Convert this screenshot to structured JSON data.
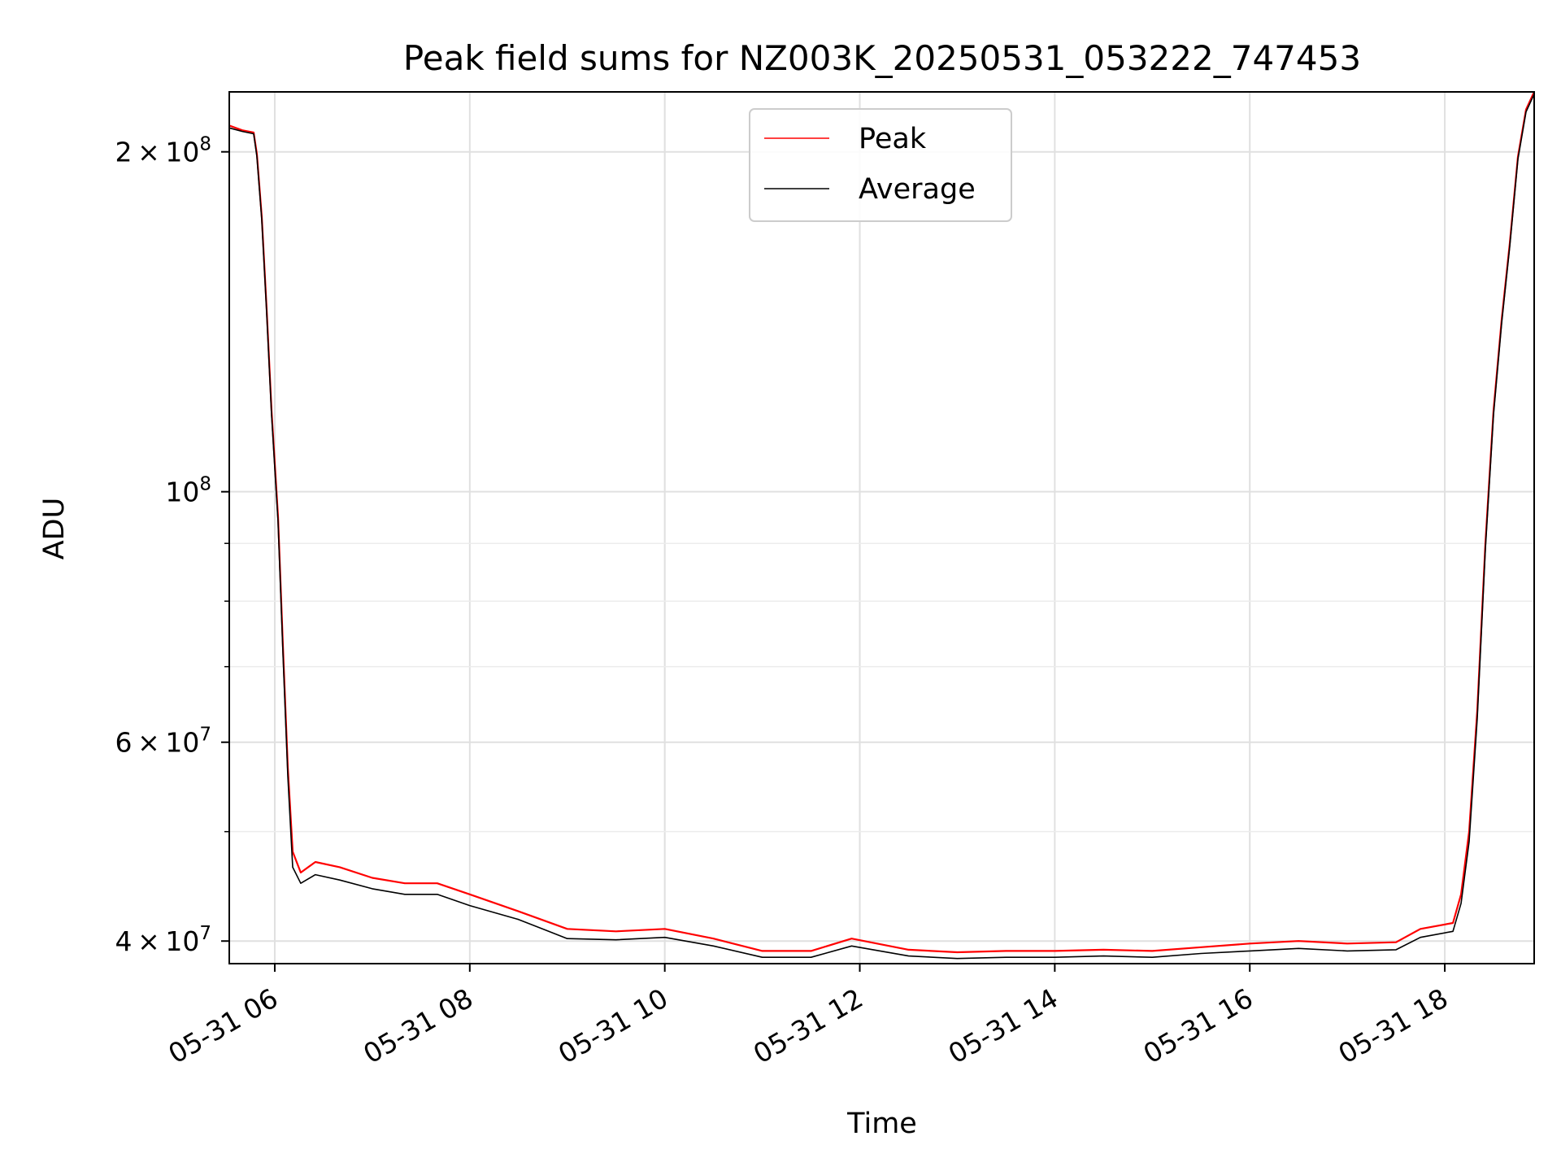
{
  "chart_data": {
    "type": "line",
    "title": "Peak field sums for NZ003K_20250531_053222_747453",
    "xlabel": "Time",
    "ylabel": "ADU",
    "yscale": "log",
    "grid": true,
    "legend_position": "top-center",
    "xlim": [
      "2025-05-31T05:32",
      "2025-05-31T18:55"
    ],
    "ylim": [
      38200000,
      226000000
    ],
    "x_ticks": [
      {
        "value": "2025-05-31T06:00",
        "label": "05-31 06"
      },
      {
        "value": "2025-05-31T08:00",
        "label": "05-31 08"
      },
      {
        "value": "2025-05-31T10:00",
        "label": "05-31 10"
      },
      {
        "value": "2025-05-31T12:00",
        "label": "05-31 12"
      },
      {
        "value": "2025-05-31T14:00",
        "label": "05-31 14"
      },
      {
        "value": "2025-05-31T16:00",
        "label": "05-31 16"
      },
      {
        "value": "2025-05-31T18:00",
        "label": "05-31 18"
      }
    ],
    "y_major_ticks": [
      {
        "value": 40000000,
        "base": "4 × 10",
        "exp": "7"
      },
      {
        "value": 60000000,
        "base": "6 × 10",
        "exp": "7"
      },
      {
        "value": 100000000,
        "base": "10",
        "exp": "8"
      },
      {
        "value": 200000000,
        "base": "2 × 10",
        "exp": "8"
      }
    ],
    "y_minor_ticks": [
      50000000,
      70000000,
      80000000,
      90000000
    ],
    "series": [
      {
        "name": "Peak",
        "color": "#ff0000",
        "x": [
          "2025-05-31T05:32",
          "2025-05-31T05:40",
          "2025-05-31T05:47",
          "2025-05-31T05:49",
          "2025-05-31T05:52",
          "2025-05-31T05:55",
          "2025-05-31T05:58",
          "2025-05-31T06:02",
          "2025-05-31T06:05",
          "2025-05-31T06:08",
          "2025-05-31T06:11",
          "2025-05-31T06:16",
          "2025-05-31T06:25",
          "2025-05-31T06:40",
          "2025-05-31T07:00",
          "2025-05-31T07:20",
          "2025-05-31T07:40",
          "2025-05-31T08:00",
          "2025-05-31T08:30",
          "2025-05-31T09:00",
          "2025-05-31T09:30",
          "2025-05-31T10:00",
          "2025-05-31T10:30",
          "2025-05-31T11:00",
          "2025-05-31T11:30",
          "2025-05-31T11:55",
          "2025-05-31T12:30",
          "2025-05-31T13:00",
          "2025-05-31T13:30",
          "2025-05-31T14:00",
          "2025-05-31T14:30",
          "2025-05-31T15:00",
          "2025-05-31T15:30",
          "2025-05-31T16:00",
          "2025-05-31T16:30",
          "2025-05-31T17:00",
          "2025-05-31T17:30",
          "2025-05-31T17:45",
          "2025-05-31T18:05",
          "2025-05-31T18:10",
          "2025-05-31T18:15",
          "2025-05-31T18:20",
          "2025-05-31T18:25",
          "2025-05-31T18:30",
          "2025-05-31T18:35",
          "2025-05-31T18:40",
          "2025-05-31T18:45",
          "2025-05-31T18:50",
          "2025-05-31T18:55"
        ],
        "y": [
          211000000,
          209000000,
          208000000,
          199000000,
          175000000,
          145000000,
          118000000,
          95000000,
          73000000,
          57000000,
          48000000,
          46000000,
          47000000,
          46500000,
          45500000,
          45000000,
          45000000,
          44000000,
          42500000,
          41000000,
          40800000,
          41000000,
          40200000,
          39200000,
          39200000,
          40200000,
          39300000,
          39100000,
          39200000,
          39200000,
          39300000,
          39200000,
          39500000,
          39800000,
          40000000,
          39800000,
          39900000,
          41000000,
          41500000,
          44000000,
          50000000,
          64000000,
          90000000,
          118000000,
          142000000,
          166000000,
          198000000,
          218000000,
          226000000
        ]
      },
      {
        "name": "Average",
        "color": "#000000",
        "x": [
          "2025-05-31T05:32",
          "2025-05-31T05:40",
          "2025-05-31T05:47",
          "2025-05-31T05:49",
          "2025-05-31T05:52",
          "2025-05-31T05:55",
          "2025-05-31T05:58",
          "2025-05-31T06:02",
          "2025-05-31T06:05",
          "2025-05-31T06:08",
          "2025-05-31T06:11",
          "2025-05-31T06:16",
          "2025-05-31T06:25",
          "2025-05-31T06:40",
          "2025-05-31T07:00",
          "2025-05-31T07:20",
          "2025-05-31T07:40",
          "2025-05-31T08:00",
          "2025-05-31T08:30",
          "2025-05-31T09:00",
          "2025-05-31T09:30",
          "2025-05-31T10:00",
          "2025-05-31T10:30",
          "2025-05-31T11:00",
          "2025-05-31T11:30",
          "2025-05-31T11:55",
          "2025-05-31T12:30",
          "2025-05-31T13:00",
          "2025-05-31T13:30",
          "2025-05-31T14:00",
          "2025-05-31T14:30",
          "2025-05-31T15:00",
          "2025-05-31T15:30",
          "2025-05-31T16:00",
          "2025-05-31T16:30",
          "2025-05-31T17:00",
          "2025-05-31T17:30",
          "2025-05-31T17:45",
          "2025-05-31T18:05",
          "2025-05-31T18:10",
          "2025-05-31T18:15",
          "2025-05-31T18:20",
          "2025-05-31T18:25",
          "2025-05-31T18:30",
          "2025-05-31T18:35",
          "2025-05-31T18:40",
          "2025-05-31T18:45",
          "2025-05-31T18:50",
          "2025-05-31T18:55"
        ],
        "y": [
          210000000,
          208500000,
          207500000,
          198000000,
          174000000,
          144000000,
          117000000,
          94000000,
          72000000,
          56000000,
          46500000,
          45000000,
          45800000,
          45300000,
          44500000,
          44000000,
          44000000,
          43000000,
          41800000,
          40200000,
          40100000,
          40300000,
          39600000,
          38700000,
          38700000,
          39600000,
          38800000,
          38600000,
          38700000,
          38700000,
          38800000,
          38700000,
          39000000,
          39200000,
          39400000,
          39200000,
          39300000,
          40300000,
          40800000,
          43200000,
          49000000,
          63000000,
          89000000,
          117000000,
          141000000,
          165000000,
          197000000,
          217000000,
          225000000
        ]
      }
    ]
  }
}
